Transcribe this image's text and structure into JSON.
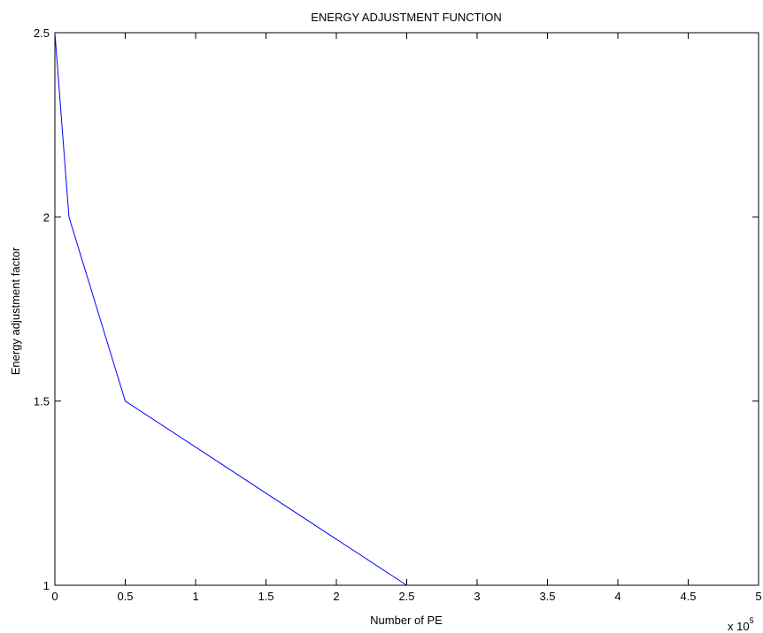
{
  "chart_data": {
    "type": "line",
    "title": "ENERGY ADJUSTMENT FUNCTION",
    "xlabel": "Number of PE",
    "ylabel": "Energy adjustment factor",
    "x_multiplier_label": "x 10",
    "x_multiplier_exponent": "5",
    "xlim": [
      0,
      5
    ],
    "ylim": [
      1,
      2.5
    ],
    "x_ticks": [
      "0",
      "0.5",
      "1",
      "1.5",
      "2",
      "2.5",
      "3",
      "3.5",
      "4",
      "4.5",
      "5"
    ],
    "y_ticks": [
      "1",
      "1.5",
      "2",
      "2.5"
    ],
    "grid": false,
    "legend": "none",
    "series": [
      {
        "color": "#0000ff",
        "x": [
          0,
          0.1,
          0.5,
          2.5
        ],
        "y": [
          2.5,
          2.0,
          1.5,
          1.0
        ]
      }
    ]
  }
}
